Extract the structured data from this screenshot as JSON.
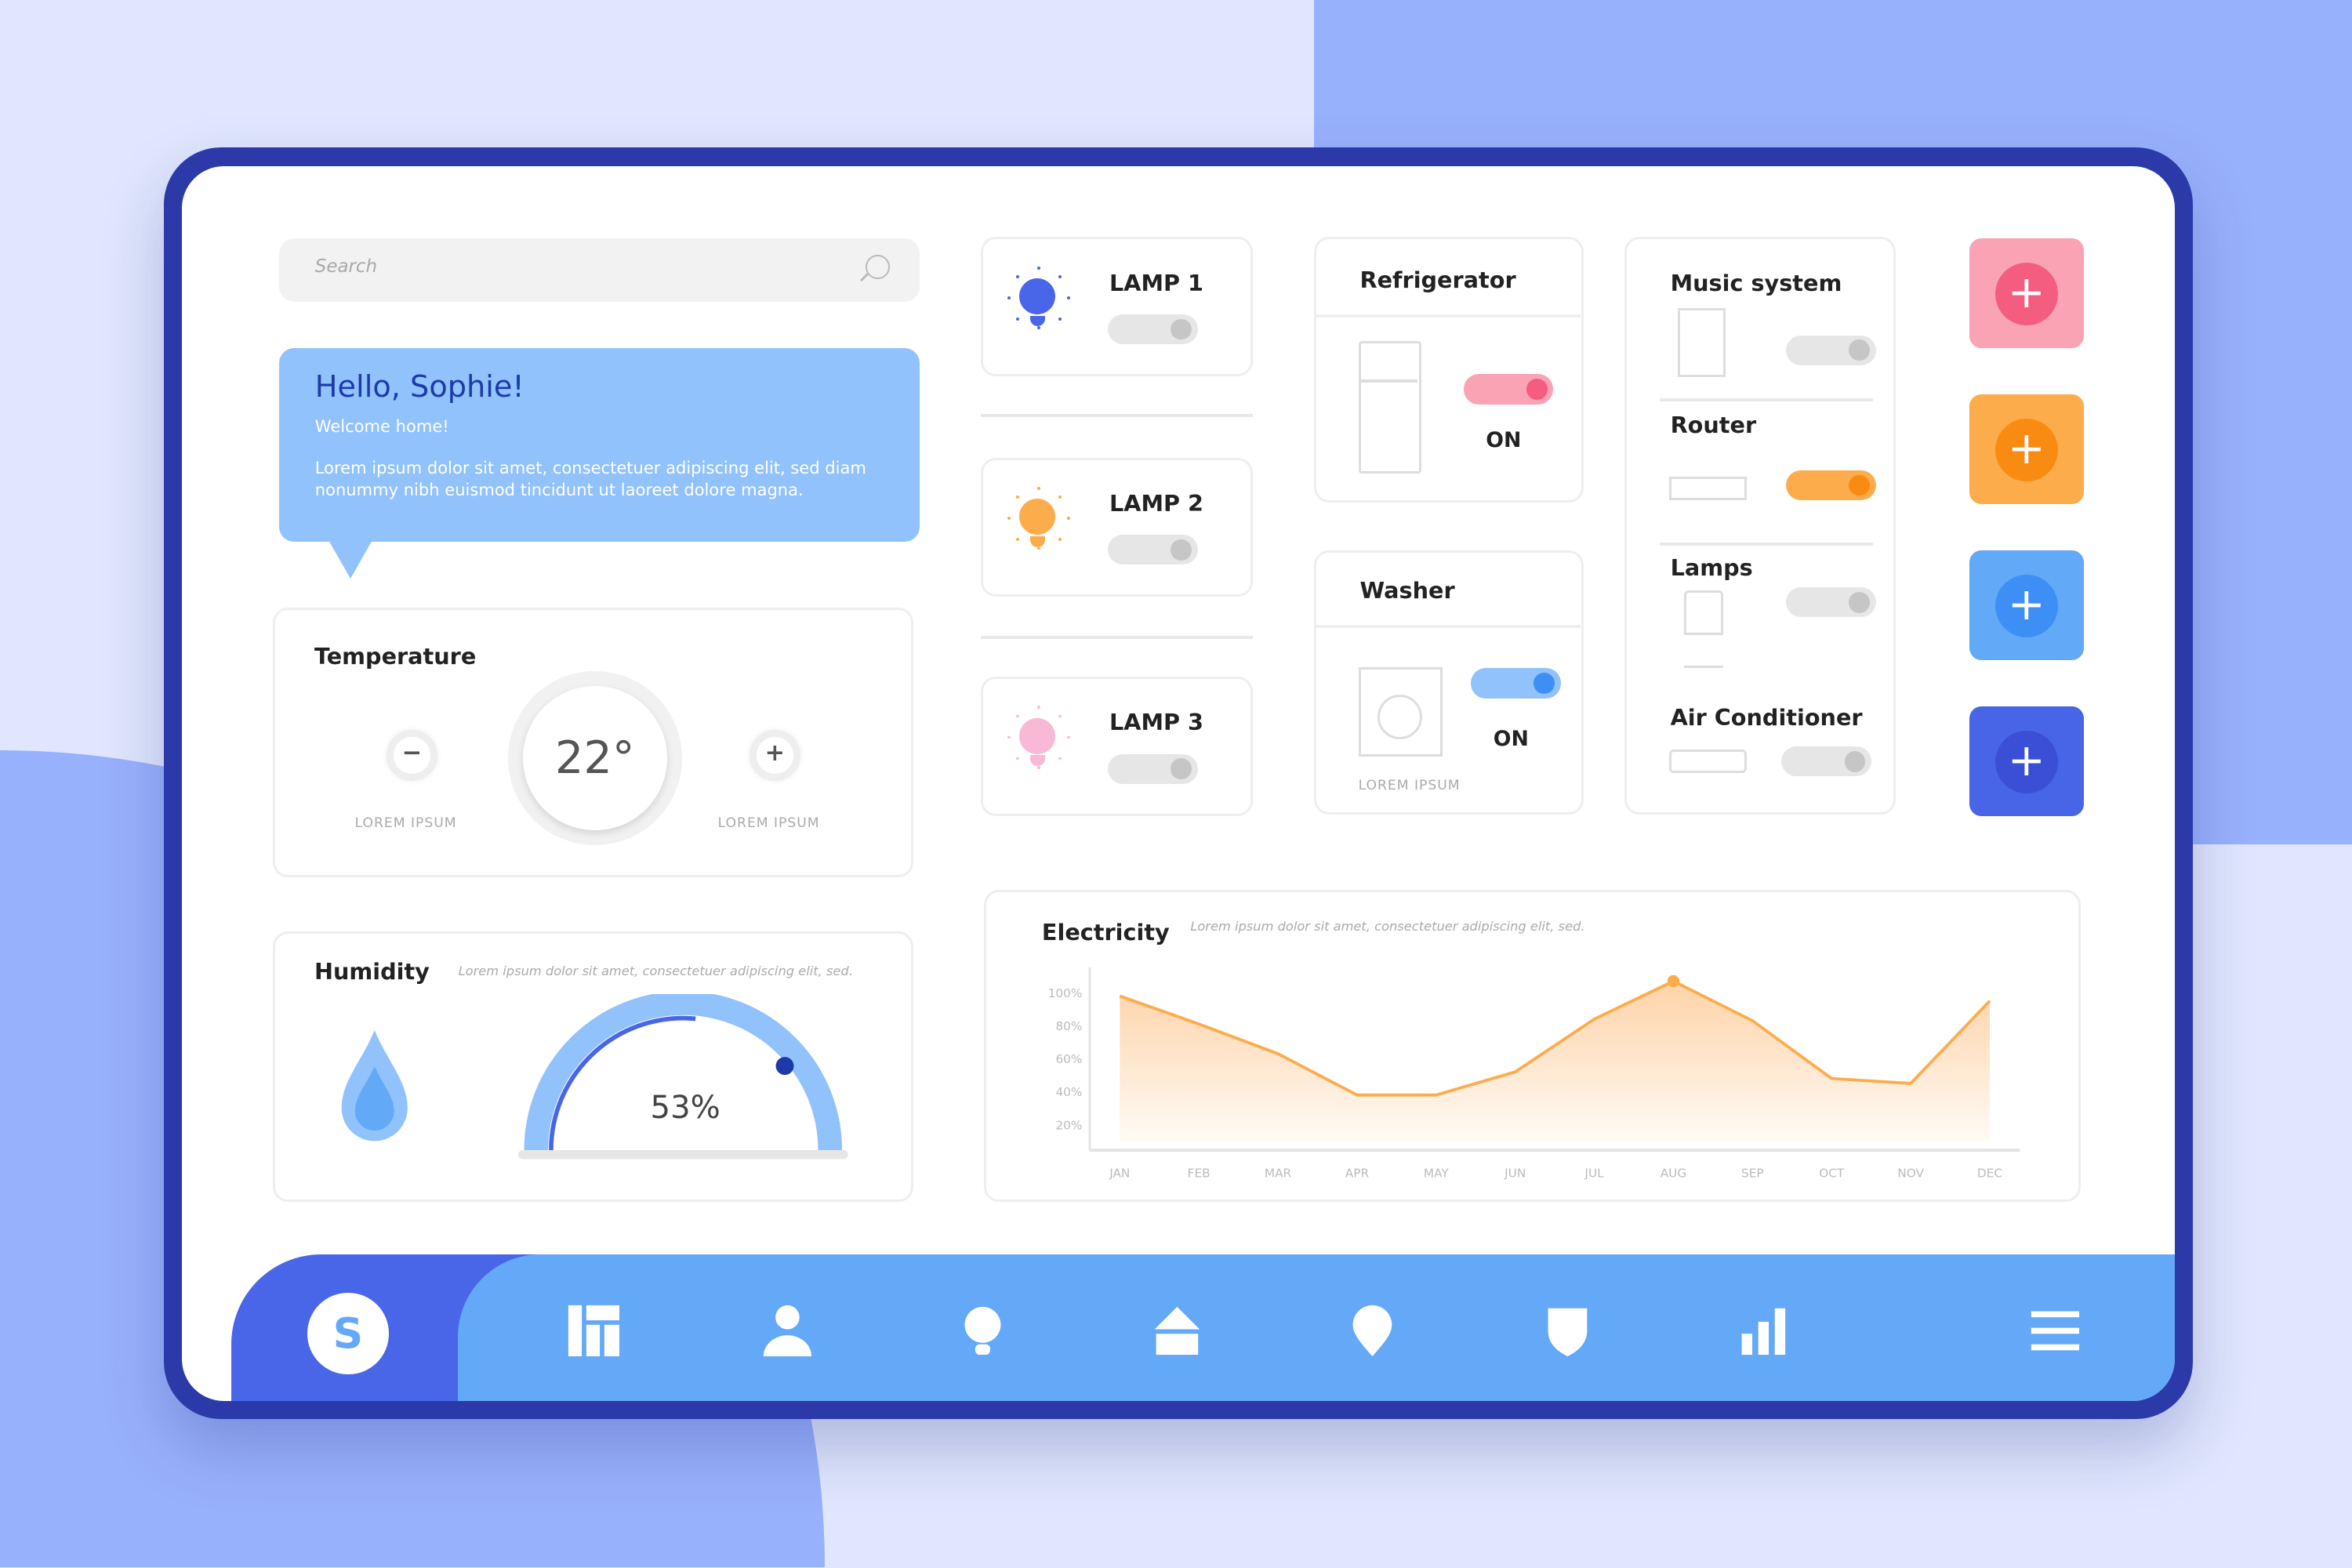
{
  "search": {
    "placeholder": "Search"
  },
  "greeting": {
    "title": "Hello, Sophie!",
    "subtitle": "Welcome home!",
    "text": "Lorem ipsum dolor sit amet, consectetuer adipiscing elit, sed diam nonummy nibh euismod tincidunt ut laoreet dolore magna."
  },
  "temperature": {
    "title": "Temperature",
    "value": "22°",
    "minus": "−",
    "plus": "+",
    "minus_label": "LOREM IPSUM",
    "plus_label": "LOREM IPSUM"
  },
  "humidity": {
    "title": "Humidity",
    "desc": "Lorem ipsum dolor sit amet, consectetuer adipiscing elit, sed.",
    "value": "53%",
    "level": 0.53
  },
  "lamps": [
    {
      "name": "LAMP 1",
      "color": "#4a66e8",
      "on": false
    },
    {
      "name": "LAMP 2",
      "color": "#fdac4c",
      "on": false
    },
    {
      "name": "LAMP 3",
      "color": "#f9b8d5",
      "on": false
    }
  ],
  "refrigerator": {
    "title": "Refrigerator",
    "status": "ON",
    "on": true,
    "color": "#f45c80"
  },
  "washer": {
    "title": "Washer",
    "status": "ON",
    "label": "LOREM IPSUM",
    "on": true,
    "color": "#3d8ff6"
  },
  "devices": [
    {
      "name": "Music system",
      "on": false
    },
    {
      "name": "Router",
      "on": true,
      "color": "#f98b12"
    },
    {
      "name": "Lamps",
      "on": false
    },
    {
      "name": "Air Conditioner",
      "on": false
    }
  ],
  "plus_buttons": [
    {
      "label": "+",
      "bg": "#f9a3b5",
      "fg": "#f45c80"
    },
    {
      "label": "+",
      "bg": "#fdac4c",
      "fg": "#f98b12"
    },
    {
      "label": "+",
      "bg": "#62a9f8",
      "fg": "#3d8ff6"
    },
    {
      "label": "+",
      "bg": "#4865e7",
      "fg": "#3a4fd6"
    }
  ],
  "chart_data": {
    "type": "area",
    "title": "Electricity",
    "subtitle": "Lorem ipsum dolor sit amet, consectetuer adipiscing elit, sed.",
    "categories": [
      "JAN",
      "FEB",
      "MAR",
      "APR",
      "MAY",
      "JUN",
      "JUL",
      "AUG",
      "SEP",
      "OCT",
      "NOV",
      "DEC"
    ],
    "values": [
      98,
      81,
      63,
      38,
      38,
      52,
      84,
      107,
      83,
      48,
      45,
      95
    ],
    "yticks": [
      "100%",
      "80%",
      "60%",
      "40%",
      "20%"
    ],
    "ylim": [
      10,
      110
    ],
    "highlight": "AUG",
    "color": "#fdac4c",
    "grid": false
  },
  "nav": {
    "avatar": "S",
    "items": [
      "dashboard-icon",
      "user-icon",
      "bulb-icon",
      "home-icon",
      "location-icon",
      "shield-icon",
      "bar-chart-icon",
      "menu-icon"
    ]
  }
}
